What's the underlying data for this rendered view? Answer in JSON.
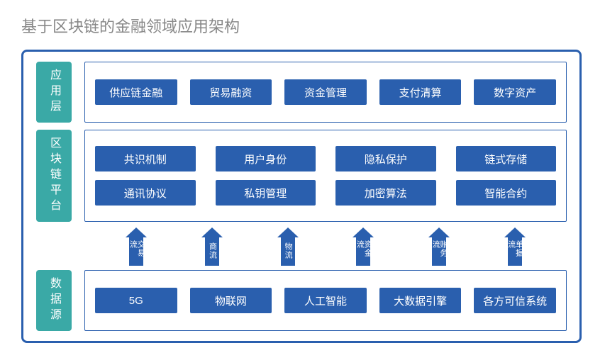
{
  "title": "基于区块链的金融领域应用架构",
  "colors": {
    "frame_border": "#2a5fae",
    "label_bg": "#3aa9a6",
    "cell_bg": "#2a5fae",
    "cell_text": "#ffffff",
    "title_color": "#888888",
    "background": "#ffffff"
  },
  "layers": [
    {
      "label": "应用层",
      "rows": [
        [
          "供应链金融",
          "贸易融资",
          "资金管理",
          "支付清算",
          "数字资产"
        ]
      ]
    },
    {
      "label": "区块链平台",
      "rows": [
        [
          "共识机制",
          "用户身份",
          "隐私保护",
          "链式存储"
        ],
        [
          "通讯协议",
          "私钥管理",
          "加密算法",
          "智能合约"
        ]
      ]
    },
    {
      "label": "数据源",
      "rows": [
        [
          "5G",
          "物联网",
          "人工智能",
          "大数据引擎",
          "各方可信系统"
        ]
      ]
    }
  ],
  "arrows": [
    "交易流",
    "商流",
    "物流",
    "资金流",
    "账务流",
    "单据流"
  ]
}
